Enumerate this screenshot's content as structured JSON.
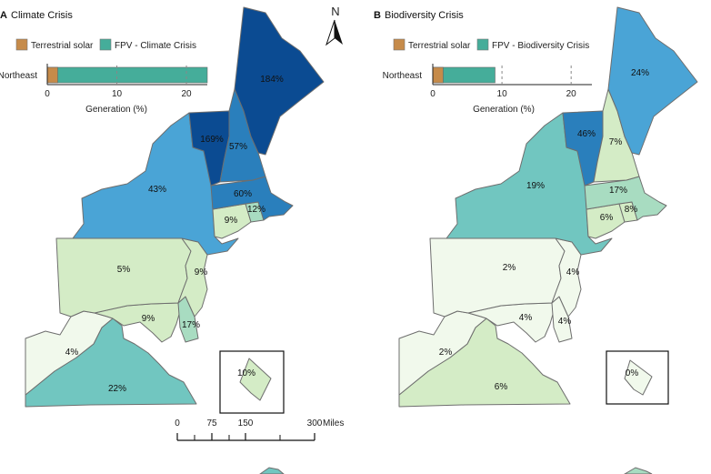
{
  "colors": {
    "terrestrial": "#c68b4a",
    "fpv": "#45ad9a",
    "c0": "#f1f9ec",
    "c1": "#d4ecc6",
    "c2": "#a8dcc1",
    "c3": "#71c6c0",
    "c4": "#4aa4d6",
    "c5": "#2a7fbc",
    "c6": "#0b4b92"
  },
  "panelA": {
    "letter": "A",
    "title": "Climate Crisis",
    "legend_terrestrial": "Terrestrial solar",
    "legend_fpv": "FPV - Climate Crisis",
    "bar_label": "Northeast",
    "terrestrial_pct": 1.5,
    "total_pct": 23,
    "x_max": 23,
    "ticks": [
      "0",
      "10",
      "20"
    ],
    "tick_values": [
      0,
      10,
      20
    ],
    "xlabel": "Generation (%)",
    "states": {
      "ME": "184%",
      "VT": "169%",
      "NH": "57%",
      "MA": "60%",
      "NY": "43%",
      "CT": "9%",
      "RI": "12%",
      "PA": "5%",
      "NJ": "9%",
      "MD": "9%",
      "DE": "17%",
      "WV": "4%",
      "VA": "22%",
      "DC": "10%"
    }
  },
  "panelB": {
    "letter": "B",
    "title": "Biodiversity Crisis",
    "legend_terrestrial": "Terrestrial solar",
    "legend_fpv": "FPV - Biodiversity Crisis",
    "bar_label": "Northeast",
    "terrestrial_pct": 1.5,
    "total_pct": 9,
    "x_max": 23,
    "ticks": [
      "0",
      "10",
      "20"
    ],
    "tick_values": [
      0,
      10,
      20
    ],
    "xlabel": "Generation (%)",
    "states": {
      "ME": "24%",
      "VT": "46%",
      "NH": "7%",
      "MA": "17%",
      "NY": "19%",
      "CT": "6%",
      "RI": "8%",
      "PA": "2%",
      "NJ": "4%",
      "MD": "4%",
      "DE": "4%",
      "WV": "2%",
      "VA": "6%",
      "DC": "0%"
    }
  },
  "north_arrow": "N",
  "scalebar": {
    "labels": [
      "0",
      "75",
      "150",
      "300"
    ],
    "unit": "Miles"
  }
}
